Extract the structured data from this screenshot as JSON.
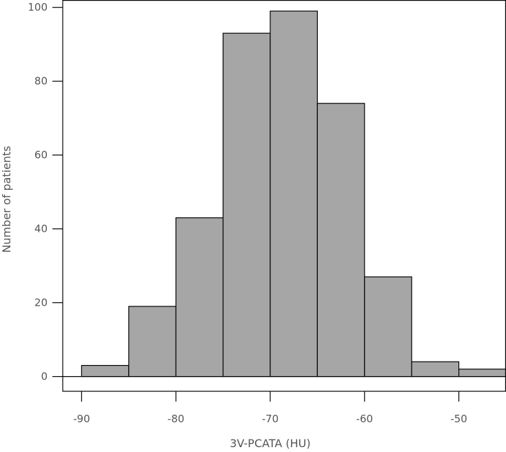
{
  "chart_data": {
    "type": "bar",
    "subtype": "histogram",
    "bin_edges": [
      -90,
      -85,
      -80,
      -75,
      -70,
      -65,
      -60,
      -55,
      -50,
      -45
    ],
    "values": [
      3,
      19,
      43,
      93,
      99,
      74,
      27,
      4,
      2
    ],
    "xlabel": "3V-PCATA (HU)",
    "ylabel": "Number of patients",
    "xlim": [
      -92,
      -45
    ],
    "ylim": [
      -4,
      102
    ],
    "xticks": [
      -90,
      -80,
      -70,
      -60,
      -50
    ],
    "xtick_labels": [
      "-90",
      "-80",
      "-70",
      "-60",
      "-50"
    ],
    "yticks": [
      0,
      20,
      40,
      60,
      80,
      100
    ],
    "ytick_labels": [
      "0",
      "20",
      "40",
      "60",
      "80",
      "100"
    ],
    "bar_color": "#a6a6a6",
    "edge_color": "#000000",
    "grid": false,
    "legend": "none"
  }
}
